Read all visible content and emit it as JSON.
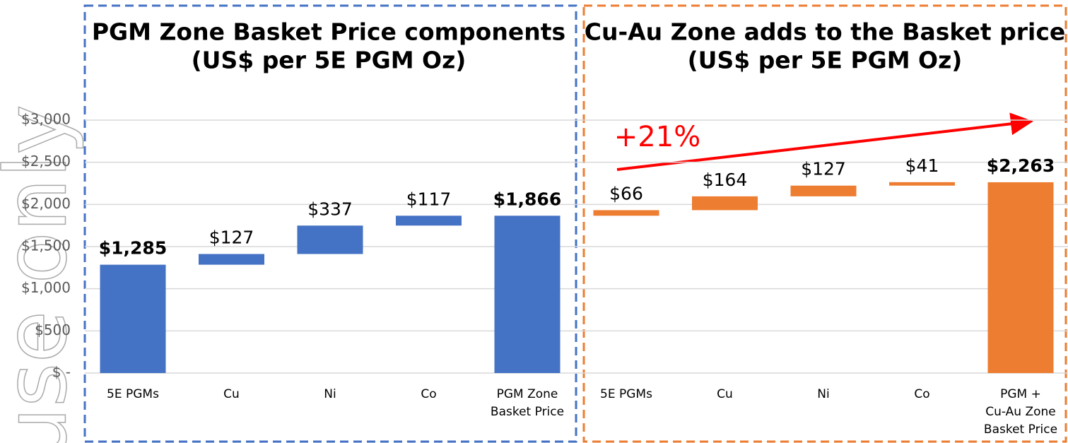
{
  "chart_data": {
    "type": "waterfall",
    "watermark": "use only",
    "ylim": [
      0,
      3000
    ],
    "yticks": [
      {
        "value": 0,
        "label": "$ -"
      },
      {
        "value": 500,
        "label": "$500"
      },
      {
        "value": 1000,
        "label": "$1,000"
      },
      {
        "value": 1500,
        "label": "$1,500"
      },
      {
        "value": 2000,
        "label": "$2,000"
      },
      {
        "value": 2500,
        "label": "$2,500"
      },
      {
        "value": 3000,
        "label": "$3,000"
      }
    ],
    "grid": true,
    "annotation": "+21%",
    "panels": [
      {
        "title": [
          "PGM Zone Basket Price components",
          "(US$ per 5E PGM Oz)"
        ],
        "color": "#4472c4",
        "categories": [
          "5E PGMs",
          "Cu",
          "Ni",
          "Co",
          [
            "PGM Zone",
            "Basket Price"
          ]
        ],
        "values": [
          1285,
          127,
          337,
          117,
          1866
        ],
        "value_labels": [
          "$1,285",
          "$127",
          "$337",
          "$117",
          "$1,866"
        ],
        "total": [
          true,
          false,
          false,
          false,
          true
        ]
      },
      {
        "title": [
          "Cu-Au Zone adds to the Basket price",
          "(US$ per 5E PGM Oz)"
        ],
        "color": "#ed7d31",
        "categories": [
          "5E PGMs",
          "Cu",
          "Ni",
          "Co",
          [
            "PGM +",
            "Cu-Au Zone",
            "Basket Price"
          ]
        ],
        "values": [
          66,
          164,
          127,
          41,
          2263
        ],
        "value_labels": [
          "$66",
          "$164",
          "$127",
          "$41",
          "$2,263"
        ],
        "total": [
          false,
          false,
          false,
          false,
          true
        ]
      }
    ]
  }
}
